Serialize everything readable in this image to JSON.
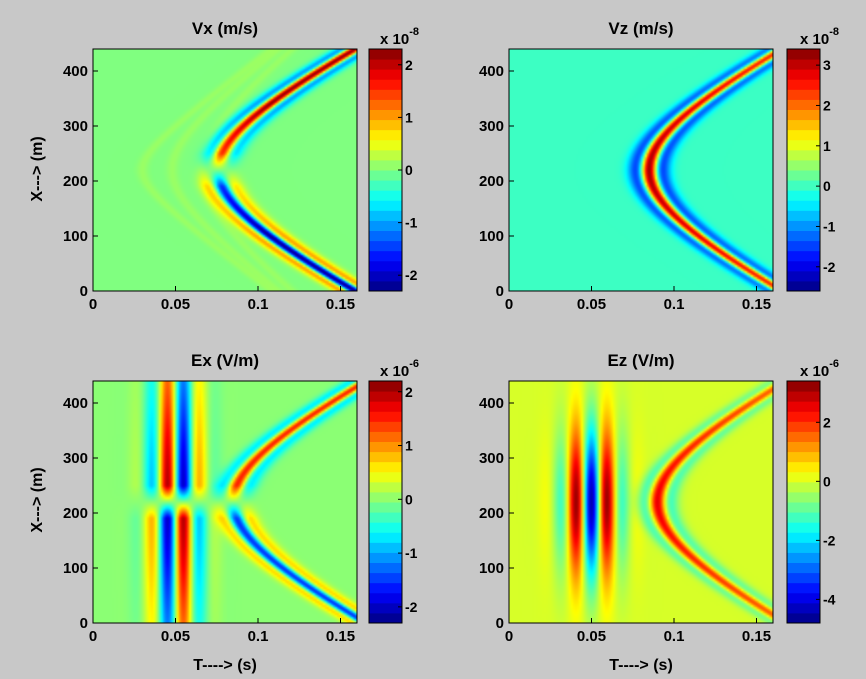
{
  "chart_data": [
    {
      "type": "heatmap",
      "title": "Vx (m/s)",
      "xlabel": "",
      "ylabel": "X---> (m)",
      "xlim": [
        0,
        0.16
      ],
      "ylim": [
        0,
        440
      ],
      "xticks": [
        "0",
        "0.05",
        "0.1",
        "0.15"
      ],
      "yticks": [
        "0",
        "100",
        "200",
        "300",
        "400"
      ],
      "colorbar": {
        "multiplier": "x 10",
        "exponent": "-8",
        "range": [
          -2.3,
          2.3
        ],
        "ticks": [
          "-2",
          "-1",
          "0",
          "1",
          "2"
        ]
      },
      "background": "#9ccd55",
      "field": {
        "kind": "vx",
        "source_x": 220,
        "apex_t": 0.08,
        "velocity": 1550,
        "period": 0.022
      }
    },
    {
      "type": "heatmap",
      "title": "Vz (m/s)",
      "xlabel": "",
      "ylabel": "",
      "xlim": [
        0,
        0.16
      ],
      "ylim": [
        0,
        440
      ],
      "xticks": [
        "0",
        "0.05",
        "0.1",
        "0.15"
      ],
      "yticks": [
        "0",
        "100",
        "200",
        "300",
        "400"
      ],
      "colorbar": {
        "multiplier": "x 10",
        "exponent": "-8",
        "range": [
          -2.6,
          3.4
        ],
        "ticks": [
          "-2",
          "-1",
          "0",
          "1",
          "2",
          "3"
        ]
      },
      "background": "#6cc1a8",
      "field": {
        "kind": "vz",
        "source_x": 220,
        "apex_t": 0.085,
        "velocity": 1550,
        "period": 0.022
      }
    },
    {
      "type": "heatmap",
      "title": "Ex (V/m)",
      "xlabel": "T----> (s)",
      "ylabel": "X---> (m)",
      "xlim": [
        0,
        0.16
      ],
      "ylim": [
        0,
        440
      ],
      "xticks": [
        "0",
        "0.05",
        "0.1",
        "0.15"
      ],
      "yticks": [
        "0",
        "100",
        "200",
        "300",
        "400"
      ],
      "colorbar": {
        "multiplier": "x 10",
        "exponent": "-6",
        "range": [
          -2.3,
          2.2
        ],
        "ticks": [
          "-2",
          "-1",
          "0",
          "1",
          "2"
        ]
      },
      "background": "#9ccd55",
      "field": {
        "kind": "ex",
        "source_x": 220,
        "apex_t": 0.085,
        "velocity": 1550,
        "period": 0.022
      }
    },
    {
      "type": "heatmap",
      "title": "Ez (V/m)",
      "xlabel": "T----> (s)",
      "ylabel": "",
      "xlim": [
        0,
        0.16
      ],
      "ylim": [
        0,
        440
      ],
      "xticks": [
        "0",
        "0.05",
        "0.1",
        "0.15"
      ],
      "yticks": [
        "0",
        "100",
        "200",
        "300",
        "400"
      ],
      "colorbar": {
        "multiplier": "x 10",
        "exponent": "-6",
        "range": [
          -4.8,
          3.4
        ],
        "ticks": [
          "-4",
          "-2",
          "0",
          "2"
        ]
      },
      "background": "#cfe03d",
      "field": {
        "kind": "ez",
        "source_x": 220,
        "apex_t": 0.09,
        "velocity": 1550,
        "period": 0.022
      }
    }
  ]
}
